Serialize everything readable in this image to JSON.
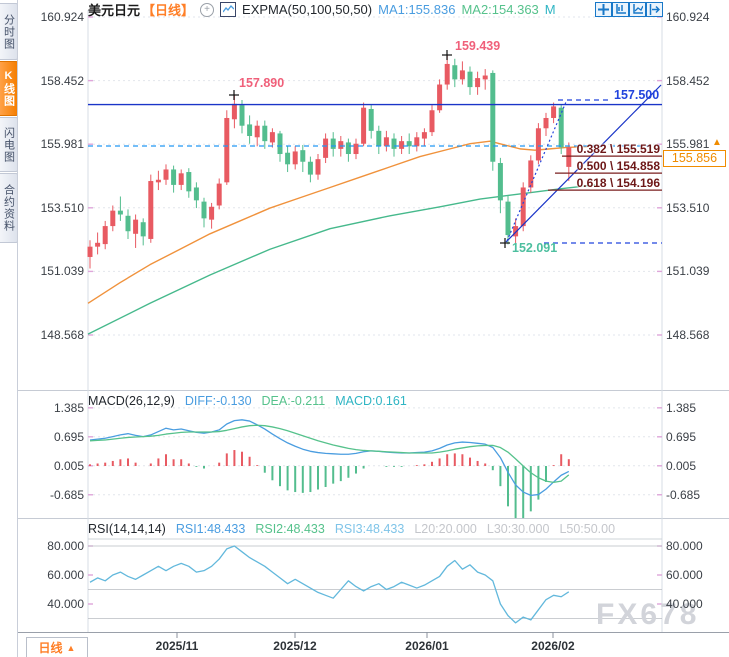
{
  "sidebar": {
    "tabs": [
      {
        "label": "分时图",
        "active": false
      },
      {
        "label": "K线图",
        "active": true
      },
      {
        "label": "闪电图",
        "active": false
      },
      {
        "label": "合约资料",
        "active": false
      }
    ]
  },
  "header": {
    "symbol": "美元日元",
    "period_tag": "【日线】",
    "add_icon": "plus-circle-icon",
    "chart_icon": "line-chart-icon",
    "indicator": "EXPMA(50,100,50,50)",
    "ma1_label": "MA1:155.836",
    "ma2_label": "MA2:154.363",
    "ma3_label": "M",
    "toolbar_icons": [
      "move-cross-icon",
      "axis-scale-icon",
      "axis-chart-icon",
      "pan-right-icon"
    ]
  },
  "main_chart": {
    "y_axis": [
      "160.924",
      "158.452",
      "155.981",
      "153.510",
      "151.039",
      "148.568"
    ],
    "annotations": {
      "peak1": "157.890",
      "peak2": "159.439",
      "low": "152.091",
      "resistance": "157.500"
    },
    "current_price": "155.856",
    "fib_levels": [
      {
        "label": "0.382 \\ 155.519",
        "price": 155.519
      },
      {
        "label": "0.500 \\ 154.858",
        "price": 154.858
      },
      {
        "label": "0.618 \\ 154.196",
        "price": 154.196
      }
    ],
    "candles_ohlc": [
      [
        151.6,
        152.25,
        151.15,
        152.0
      ],
      [
        152.0,
        152.55,
        151.7,
        152.15
      ],
      [
        152.1,
        153.0,
        151.9,
        152.8
      ],
      [
        152.8,
        153.6,
        152.6,
        153.4
      ],
      [
        153.4,
        153.95,
        153.0,
        153.25
      ],
      [
        153.2,
        153.45,
        152.3,
        152.6
      ],
      [
        152.5,
        153.25,
        151.95,
        153.05
      ],
      [
        152.95,
        153.1,
        152.05,
        152.4
      ],
      [
        152.3,
        154.8,
        152.15,
        154.55
      ],
      [
        154.5,
        154.95,
        154.2,
        154.6
      ],
      [
        154.6,
        155.2,
        154.4,
        155.0
      ],
      [
        155.0,
        155.15,
        154.1,
        154.4
      ],
      [
        154.4,
        155.0,
        154.2,
        154.85
      ],
      [
        154.9,
        155.05,
        153.9,
        154.15
      ],
      [
        154.3,
        154.5,
        153.5,
        153.8
      ],
      [
        153.75,
        153.9,
        152.75,
        153.1
      ],
      [
        153.05,
        153.7,
        152.7,
        153.55
      ],
      [
        153.6,
        154.65,
        153.45,
        154.45
      ],
      [
        154.5,
        157.3,
        154.4,
        157.0
      ],
      [
        156.95,
        157.89,
        156.6,
        157.55
      ],
      [
        157.5,
        157.7,
        156.4,
        156.7
      ],
      [
        156.75,
        157.1,
        156.0,
        156.3
      ],
      [
        156.25,
        156.9,
        155.9,
        156.7
      ],
      [
        156.7,
        156.9,
        155.8,
        156.1
      ],
      [
        156.05,
        156.6,
        155.85,
        156.45
      ],
      [
        156.4,
        156.5,
        155.3,
        155.6
      ],
      [
        155.65,
        155.9,
        154.9,
        155.2
      ],
      [
        155.2,
        155.9,
        155.0,
        155.7
      ],
      [
        155.75,
        155.95,
        154.9,
        155.3
      ],
      [
        155.3,
        155.5,
        154.5,
        154.8
      ],
      [
        154.8,
        155.6,
        154.6,
        155.4
      ],
      [
        155.45,
        156.4,
        155.25,
        156.2
      ],
      [
        156.2,
        156.45,
        155.5,
        155.8
      ],
      [
        155.8,
        156.3,
        155.5,
        156.1
      ],
      [
        156.05,
        156.2,
        155.3,
        155.6
      ],
      [
        155.6,
        156.2,
        155.4,
        156.0
      ],
      [
        156.0,
        157.6,
        155.9,
        157.4
      ],
      [
        157.35,
        157.5,
        156.2,
        156.5
      ],
      [
        156.5,
        156.7,
        155.6,
        155.9
      ],
      [
        155.9,
        156.5,
        155.7,
        156.25
      ],
      [
        156.2,
        156.4,
        155.5,
        155.8
      ],
      [
        155.8,
        156.3,
        155.6,
        156.1
      ],
      [
        156.1,
        156.4,
        155.6,
        155.9
      ],
      [
        155.9,
        156.45,
        155.7,
        156.25
      ],
      [
        156.2,
        156.6,
        155.9,
        156.45
      ],
      [
        156.45,
        157.5,
        156.3,
        157.3
      ],
      [
        157.3,
        158.5,
        157.2,
        158.3
      ],
      [
        158.3,
        159.439,
        158.1,
        159.1
      ],
      [
        159.05,
        159.3,
        158.2,
        158.5
      ],
      [
        158.5,
        159.2,
        158.3,
        158.85
      ],
      [
        158.8,
        159.0,
        157.9,
        158.2
      ],
      [
        158.2,
        158.8,
        157.9,
        158.55
      ],
      [
        158.5,
        158.9,
        158.1,
        158.65
      ],
      [
        158.75,
        158.85,
        154.95,
        155.3
      ],
      [
        155.25,
        155.45,
        153.3,
        153.8
      ],
      [
        153.75,
        154.0,
        152.091,
        152.45
      ],
      [
        152.4,
        153.1,
        151.95,
        152.8
      ],
      [
        152.8,
        154.5,
        152.6,
        154.3
      ],
      [
        154.3,
        155.55,
        154.1,
        155.35
      ],
      [
        155.35,
        156.8,
        155.2,
        156.6
      ],
      [
        156.6,
        157.2,
        156.3,
        157.0
      ],
      [
        157.0,
        157.6,
        156.8,
        157.45
      ],
      [
        157.4,
        157.5,
        155.6,
        155.86
      ],
      [
        155.1,
        156.05,
        154.55,
        155.86
      ]
    ],
    "ma1_points": [
      [
        88,
        149.8
      ],
      [
        120,
        150.6
      ],
      [
        150,
        151.3
      ],
      [
        180,
        151.9
      ],
      [
        210,
        152.5
      ],
      [
        240,
        153.0
      ],
      [
        270,
        153.5
      ],
      [
        300,
        153.9
      ],
      [
        330,
        154.3
      ],
      [
        360,
        154.7
      ],
      [
        390,
        155.1
      ],
      [
        420,
        155.5
      ],
      [
        450,
        155.8
      ],
      [
        470,
        156.0
      ],
      [
        490,
        156.1
      ],
      [
        505,
        155.95
      ],
      [
        520,
        155.8
      ],
      [
        535,
        155.75
      ],
      [
        550,
        155.8
      ],
      [
        565,
        155.85
      ],
      [
        580,
        155.88
      ],
      [
        595,
        155.9
      ]
    ],
    "ma2_points": [
      [
        88,
        148.6
      ],
      [
        150,
        149.8
      ],
      [
        210,
        150.9
      ],
      [
        270,
        151.9
      ],
      [
        330,
        152.7
      ],
      [
        390,
        153.2
      ],
      [
        440,
        153.55
      ],
      [
        480,
        153.85
      ],
      [
        520,
        154.05
      ],
      [
        560,
        154.25
      ],
      [
        595,
        154.4
      ]
    ]
  },
  "macd": {
    "title": "MACD(26,12,9)",
    "diff_label": "DIFF:-0.130",
    "dea_label": "DEA:-0.211",
    "macd_label": "MACD:0.161",
    "y_axis": [
      "1.385",
      "0.695",
      "0.005",
      "-0.685"
    ],
    "diff_series": [
      0.62,
      0.64,
      0.66,
      0.7,
      0.74,
      0.77,
      0.73,
      0.7,
      0.74,
      0.82,
      0.9,
      0.86,
      0.88,
      0.84,
      0.8,
      0.78,
      0.81,
      0.86,
      1.0,
      1.08,
      1.1,
      1.07,
      0.98,
      0.88,
      0.76,
      0.65,
      0.55,
      0.47,
      0.4,
      0.35,
      0.32,
      0.3,
      0.29,
      0.28,
      0.28,
      0.3,
      0.34,
      0.36,
      0.35,
      0.33,
      0.32,
      0.31,
      0.31,
      0.32,
      0.33,
      0.36,
      0.42,
      0.5,
      0.55,
      0.57,
      0.56,
      0.54,
      0.52,
      0.44,
      0.2,
      -0.15,
      -0.45,
      -0.62,
      -0.7,
      -0.68,
      -0.55,
      -0.38,
      -0.22,
      -0.13
    ],
    "dea_series": [
      0.6,
      0.61,
      0.62,
      0.64,
      0.66,
      0.68,
      0.69,
      0.7,
      0.71,
      0.73,
      0.76,
      0.78,
      0.8,
      0.81,
      0.81,
      0.81,
      0.81,
      0.82,
      0.85,
      0.89,
      0.93,
      0.96,
      0.97,
      0.96,
      0.93,
      0.89,
      0.84,
      0.78,
      0.72,
      0.66,
      0.6,
      0.55,
      0.5,
      0.46,
      0.42,
      0.39,
      0.37,
      0.36,
      0.35,
      0.34,
      0.33,
      0.32,
      0.31,
      0.31,
      0.31,
      0.31,
      0.33,
      0.36,
      0.4,
      0.43,
      0.46,
      0.48,
      0.49,
      0.49,
      0.44,
      0.33,
      0.17,
      0.0,
      -0.16,
      -0.28,
      -0.36,
      -0.39,
      -0.36,
      -0.211
    ]
  },
  "rsi": {
    "title": "RSI(14,14,14)",
    "rsi1_label": "RSI1:48.433",
    "rsi2_label": "RSI2:48.433",
    "rsi3_label": "RSI3:48.433",
    "l20_label": "L20:20.000",
    "l30_label": "L30:30.000",
    "l50_label": "L50:50.00",
    "y_axis": [
      "80.000",
      "60.000",
      "40.000"
    ],
    "values": [
      55,
      58,
      56,
      60,
      62,
      59,
      57,
      60,
      63,
      66,
      63,
      66,
      68,
      66,
      62,
      63,
      66,
      71,
      78,
      80,
      76,
      72,
      69,
      66,
      62,
      58,
      54,
      57,
      54,
      51,
      48,
      46,
      44,
      50,
      56,
      52,
      49,
      52,
      54,
      50,
      52,
      55,
      53,
      51,
      53,
      56,
      59,
      66,
      70,
      64,
      67,
      62,
      60,
      56,
      40,
      32,
      27,
      31,
      29,
      36,
      43,
      46,
      45,
      48.4
    ]
  },
  "bottom": {
    "period": "日线",
    "dates": [
      "2025/11",
      "2025/12",
      "2026/01",
      "2026/02"
    ]
  },
  "watermark": "FX678",
  "colors": {
    "up": "#e85a62",
    "down": "#53bd8e",
    "ma1": "#f0923c",
    "ma2": "#46b98c",
    "diff": "#4a9de0",
    "dea": "#56c28c",
    "macd_teal": "#2fb5c4",
    "rsi_line": "#62b8dc",
    "accent_orange": "#ff7f27",
    "trend_blue": "#1a35c8",
    "dashed_cyan": "#2196f3",
    "fib": "#7a1f1f",
    "annotation_pink": "#f0607a",
    "annotation_teal": "#4dbf9f",
    "grid": "#e2e6ec",
    "tick_pink": "#dfa6da",
    "watermark_gray": "#d2d4da",
    "icon_blue": "#1878c8"
  }
}
